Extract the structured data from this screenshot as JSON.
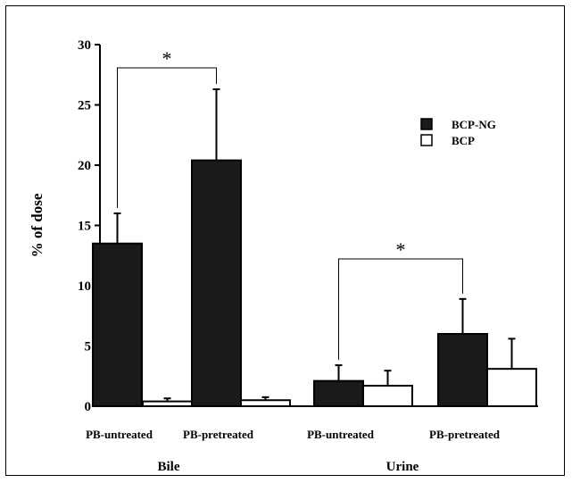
{
  "chart_data": {
    "type": "bar",
    "ylabel": "% of dose",
    "ylim": [
      0,
      30
    ],
    "yticks": [
      0,
      5,
      10,
      15,
      20,
      25,
      30
    ],
    "groups": [
      {
        "label": "Bile",
        "categories": [
          "PB-untreated",
          "PB-pretreated"
        ]
      },
      {
        "label": "Urine",
        "categories": [
          "PB-untreated",
          "PB-pretreated"
        ]
      }
    ],
    "series": [
      {
        "name": "BCP-NG",
        "color": "#1a1a1a",
        "values": [
          13.5,
          20.4,
          2.1,
          6.0
        ],
        "errors": [
          2.5,
          5.9,
          1.3,
          2.9
        ]
      },
      {
        "name": "BCP",
        "color": "#ffffff",
        "values": [
          0.4,
          0.5,
          1.7,
          3.1
        ],
        "errors": [
          0.25,
          0.25,
          1.25,
          2.5
        ]
      }
    ],
    "significance": [
      {
        "group": "Bile",
        "label": "*"
      },
      {
        "group": "Urine",
        "label": "*"
      }
    ],
    "legend_position": "top-right",
    "grid": false
  }
}
